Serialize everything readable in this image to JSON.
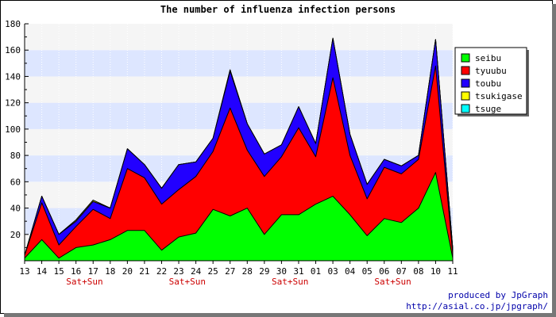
{
  "chart_data": {
    "type": "area",
    "stacked": true,
    "title": "The number of influenza infection persons",
    "categories": [
      "13",
      "14",
      "15",
      "16",
      "17",
      "18",
      "20",
      "21",
      "22",
      "23",
      "24",
      "25",
      "27",
      "28",
      "29",
      "30",
      "31",
      "01",
      "03",
      "04",
      "05",
      "06",
      "07",
      "08",
      "10",
      "11"
    ],
    "weekend_label": "Sat+Sun",
    "weekend_after_indices": [
      3,
      9,
      15,
      21
    ],
    "ylim": [
      0,
      180
    ],
    "yticks": [
      20,
      40,
      60,
      80,
      100,
      120,
      140,
      160,
      180
    ],
    "grid": true,
    "legend_position": "right",
    "series": [
      {
        "name": "seibu",
        "color": "#00ff00",
        "values": [
          2,
          16,
          2,
          10,
          12,
          16,
          23,
          23,
          8,
          18,
          21,
          39,
          34,
          40,
          20,
          35,
          35,
          43,
          49,
          35,
          19,
          32,
          29,
          40,
          67,
          2
        ]
      },
      {
        "name": "tyuubu",
        "color": "#ff0000",
        "values": [
          2,
          28,
          10,
          16,
          27,
          16,
          47,
          40,
          35,
          36,
          43,
          44,
          82,
          44,
          44,
          44,
          66,
          36,
          90,
          45,
          28,
          39,
          37,
          37,
          81,
          3
        ]
      },
      {
        "name": "toubu",
        "color": "#2200ff",
        "values": [
          0,
          5,
          8,
          4,
          6,
          8,
          15,
          10,
          12,
          19,
          11,
          10,
          28,
          20,
          17,
          9,
          16,
          10,
          30,
          16,
          11,
          6,
          6,
          3,
          20,
          4
        ]
      },
      {
        "name": "tsukigase",
        "color": "#ffff00",
        "values": [
          0,
          0,
          0,
          1,
          1,
          0,
          0,
          0,
          0,
          0,
          0,
          0,
          1,
          0,
          0,
          0,
          0,
          0,
          0,
          0,
          0,
          0,
          0,
          0,
          0,
          0
        ]
      },
      {
        "name": "tsuge",
        "color": "#00ffff",
        "values": [
          0,
          0,
          0,
          0,
          0,
          0,
          0,
          0,
          0,
          0,
          0,
          0,
          0,
          0,
          0,
          0,
          0,
          0,
          0,
          0,
          0,
          0,
          0,
          0,
          0,
          0
        ]
      }
    ]
  },
  "footer": {
    "line1": "produced by JpGraph",
    "line2": "http://asial.co.jp/jpgraph/"
  },
  "colors": {
    "band_light": "#f5f5f5",
    "band_blue": "#dde6ff",
    "weekend_text": "#cc0000",
    "footer_text": "#0000aa"
  }
}
